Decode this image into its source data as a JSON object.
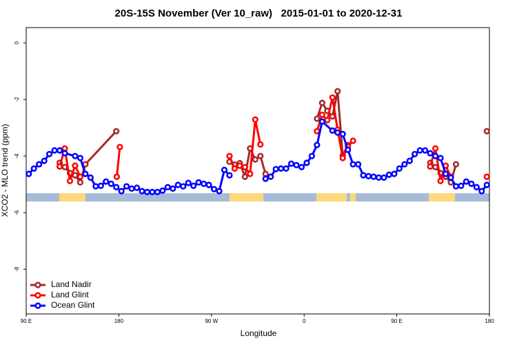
{
  "chart_data": {
    "type": "line",
    "title": "20S-15S November (Ver 10_raw)   2015-01-01 to 2020-12-31",
    "x_label": "Longitude",
    "y_label": "XCO2 - MLO trend (ppm)",
    "xlim": [
      90,
      540
    ],
    "xticks": [
      {
        "value": 90,
        "label": "90 E"
      },
      {
        "value": 180,
        "label": "180"
      },
      {
        "value": 270,
        "label": "90 W"
      },
      {
        "value": 360,
        "label": "0"
      },
      {
        "value": 450,
        "label": "90 E"
      },
      {
        "value": 540,
        "label": "180"
      }
    ],
    "ylim": [
      -9.58,
      0.54
    ],
    "yticks": [
      0,
      -2,
      -4,
      -6,
      -8
    ],
    "legend": "bottomleft",
    "series": [
      {
        "name": "Land Nadir",
        "color": "#a52a2a",
        "x": [
          122.5,
          127.5,
          132.5,
          137.5,
          142.5,
          147.5,
          177.5,
          230,
          287.5,
          292.5,
          297.5,
          302.5,
          307.5,
          312.5,
          317.5,
          322.5,
          350,
          372.5,
          377.5,
          382.5,
          387.5,
          392.5,
          397.5,
          402.5,
          450,
          482.5,
          487.5,
          492.5,
          497.5,
          502.5,
          507.5,
          520,
          537.5
        ],
        "values": [
          -4.24,
          -4.39,
          -4.6,
          -4.68,
          -4.93,
          -4.29,
          -3.12,
          null,
          -4.2,
          -4.3,
          -4.25,
          -4.73,
          -3.73,
          -4.12,
          -4.0,
          -4.63,
          null,
          -2.68,
          -2.12,
          -2.4,
          -2.6,
          -1.71,
          -3.98,
          -3.61,
          null,
          -4.24,
          -4.39,
          -4.6,
          -4.73,
          -4.93,
          -4.29,
          null,
          -3.12
        ]
      },
      {
        "name": "Land Glint",
        "color": "#ff0000",
        "x": [
          122.5,
          127.5,
          132.5,
          137.5,
          142.5,
          160,
          178,
          181,
          230,
          287.5,
          292.5,
          297.5,
          302.5,
          307.5,
          312.5,
          317.5,
          350,
          372.5,
          377.5,
          382.5,
          387.5,
          392.5,
          397.5,
          402.5,
          407.5,
          450,
          482.5,
          487.5,
          492.5,
          497.5,
          502.5,
          520,
          537.5
        ],
        "values": [
          -4.37,
          -3.73,
          -4.88,
          -4.34,
          -4.73,
          null,
          -4.73,
          -3.68,
          null,
          -4.0,
          -4.44,
          -4.34,
          -4.39,
          -4.63,
          -2.71,
          -3.59,
          null,
          -3.12,
          -2.54,
          -2.73,
          -1.93,
          -3.07,
          -4.07,
          -3.66,
          -3.46,
          null,
          -4.37,
          -3.73,
          -4.88,
          -4.34,
          -4.73,
          null,
          -4.73
        ]
      },
      {
        "name": "Ocean Glint",
        "color": "#0000ff",
        "x": [
          92.5,
          97.5,
          102.5,
          107.5,
          112.5,
          117.5,
          122.5,
          127.5,
          137.5,
          142.5,
          147.5,
          152.5,
          157.5,
          162.5,
          167.5,
          172.5,
          177.5,
          182.5,
          187.5,
          192.5,
          197.5,
          202.5,
          207.5,
          212.5,
          217.5,
          222.5,
          227.5,
          232.5,
          237.5,
          242.5,
          247.5,
          252.5,
          257.5,
          262.5,
          267.5,
          272.5,
          277.5,
          282.5,
          287.5,
          300,
          322.5,
          327.5,
          332.5,
          337.5,
          342.5,
          347.5,
          352.5,
          357.5,
          362.5,
          367.5,
          372.5,
          377.5,
          387.5,
          392.5,
          397.5,
          402.5,
          407.5,
          412.5,
          417.5,
          422.5,
          427.5,
          432.5,
          437.5,
          442.5,
          447.5,
          452.5,
          457.5,
          462.5,
          467.5,
          472.5,
          477.5,
          482.5,
          487.5,
          492.5,
          497.5,
          502.5,
          507.5,
          512.5,
          517.5,
          522.5,
          527.5,
          532.5,
          537.5
        ],
        "values": [
          -4.63,
          -4.44,
          -4.29,
          -4.17,
          -3.93,
          -3.8,
          -3.8,
          -3.9,
          -4.0,
          -4.07,
          -4.63,
          -4.76,
          -5.07,
          -5.05,
          -4.9,
          -4.98,
          -5.1,
          -5.24,
          -5.07,
          -5.15,
          -5.12,
          -5.24,
          -5.27,
          -5.27,
          -5.27,
          -5.22,
          -5.1,
          -5.15,
          -5.02,
          -5.07,
          -4.95,
          -5.05,
          -4.93,
          -4.98,
          -5.02,
          -5.17,
          -5.24,
          -4.49,
          -4.68,
          null,
          -4.8,
          -4.73,
          -4.46,
          -4.44,
          -4.44,
          -4.27,
          -4.32,
          -4.39,
          -4.24,
          -4.0,
          -3.61,
          -2.78,
          -3.1,
          -3.17,
          -3.22,
          -3.78,
          -4.29,
          -4.29,
          -4.68,
          -4.71,
          -4.73,
          -4.76,
          -4.76,
          -4.66,
          -4.63,
          -4.44,
          -4.29,
          -4.17,
          -3.93,
          -3.8,
          -3.8,
          -3.9,
          -4.0,
          -4.07,
          -4.63,
          -4.76,
          -5.07,
          -5.05,
          -4.9,
          -4.98,
          -5.1,
          -5.24,
          -5.02
        ]
      }
    ]
  }
}
